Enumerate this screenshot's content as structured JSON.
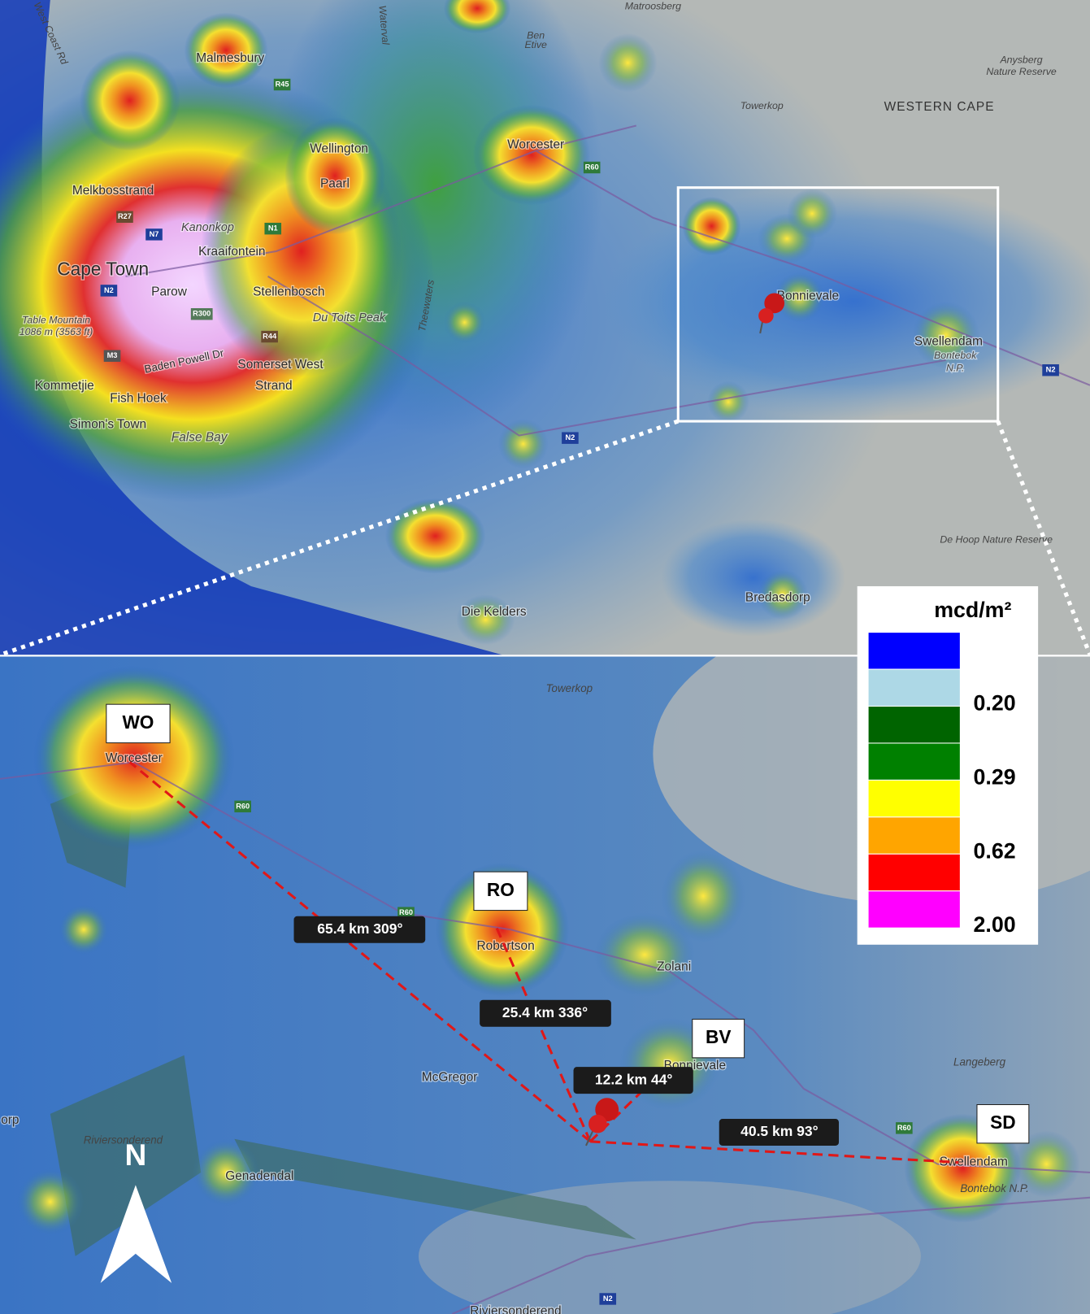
{
  "top_map": {
    "labels": [
      "Malmesbury",
      "Wellington",
      "Worcester",
      "Paarl",
      "Melkbosstrand",
      "Kanonkop",
      "Kraaifontein",
      "Cape Town",
      "Parow",
      "Stellenbosch",
      "Du Toits Peak",
      "Table Mountain",
      "1086 m (3563 ft)",
      "Baden Powell Dr",
      "Somerset West",
      "Kommetjie",
      "Strand",
      "Fish Hoek",
      "Simon's Town",
      "False Bay",
      "Die Kelders",
      "Bredasdorp",
      "Bonnievale",
      "Swellendam",
      "Bontebok",
      "N.P.",
      "WESTERN CAPE",
      "Anysberg",
      "Nature Reserve",
      "Towerkop",
      "Matroosberg",
      "Ben",
      "Etive",
      "De Hoop Nature Reserve",
      "West Coast Rd",
      "Waterval",
      "Theewaters"
    ],
    "road_shields": [
      "R45",
      "R27",
      "N7",
      "N1",
      "N2",
      "R300",
      "R44",
      "M3",
      "R60",
      "N2",
      "N2"
    ]
  },
  "bottom_map": {
    "labels": [
      "Towerkop",
      "Worcester",
      "Robertson",
      "Zolani",
      "McGregor",
      "Bonnievale",
      "Langeberg",
      "Riviersonderend",
      "orp",
      "Genadendal",
      "Swellendam",
      "Bontebok N.P.",
      "Riviersonderend"
    ],
    "road_shields": [
      "R60",
      "R60",
      "R60",
      "N2"
    ],
    "sites": [
      "WO",
      "RO",
      "BV",
      "SD"
    ],
    "distances": [
      "65.4 km 309°",
      "25.4 km 336°",
      "12.2 km 44°",
      "40.5 km 93°"
    ],
    "compass": "N"
  },
  "legend": {
    "title": "mcd/m²",
    "colors": [
      "#0000ff",
      "#add8e6",
      "#006400",
      "#008000",
      "#ffff00",
      "#ffa500",
      "#ff0000",
      "#ff00ff"
    ],
    "ticks": [
      "0.20",
      "0.29",
      "0.62",
      "2.00"
    ]
  }
}
